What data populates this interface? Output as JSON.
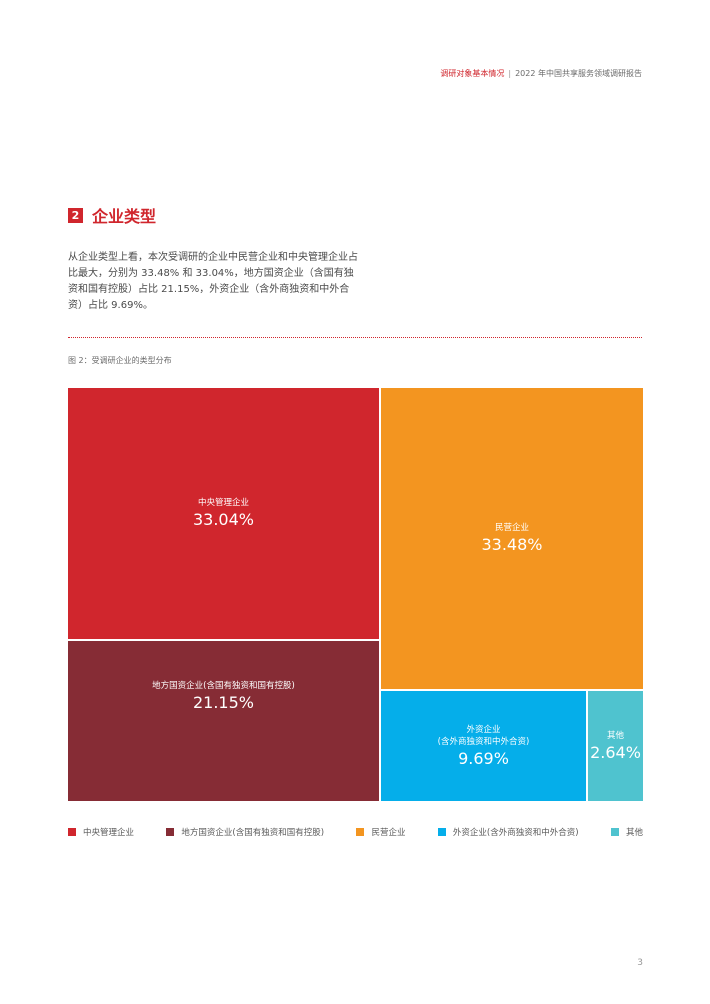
{
  "header": {
    "section": "调研对象基本情况",
    "report": "2022 年中国共享服务领域调研报告"
  },
  "section": {
    "number": "2",
    "title": "企业类型"
  },
  "intro": "从企业类型上看，本次受调研的企业中民营企业和中央管理企业占比最大，分别为 33.48% 和 33.04%，地方国资企业（含国有独资和国有控股）占比 21.15%，外资企业（含外商独资和中外合资）占比 9.69%。",
  "figure_caption": "图 2：受调研企业的类型分布",
  "page_number": "3",
  "chart_data": {
    "type": "treemap",
    "title": "",
    "items": [
      {
        "label": "中央管理企业",
        "sublabel": "",
        "value": 33.04,
        "display": "33.04%",
        "color": "#d0262d"
      },
      {
        "label": "地方国资企业(含国有独资和国有控股)",
        "sublabel": "",
        "value": 21.15,
        "display": "21.15%",
        "color": "#862c35"
      },
      {
        "label": "民营企业",
        "sublabel": "",
        "value": 33.48,
        "display": "33.48%",
        "color": "#f39520"
      },
      {
        "label": "外资企业",
        "sublabel": "(含外商独资和中外合资)",
        "value": 9.69,
        "display": "9.69%",
        "color": "#05aeea"
      },
      {
        "label": "其他",
        "sublabel": "",
        "value": 2.64,
        "display": "2.64%",
        "color": "#4fc3cf"
      }
    ],
    "legend": [
      {
        "label": "中央管理企业",
        "color": "#d0262d"
      },
      {
        "label": "地方国资企业(含国有独资和国有控股)",
        "color": "#862c35"
      },
      {
        "label": "民营企业",
        "color": "#f39520"
      },
      {
        "label": "外资企业(含外商独资和中外合资)",
        "color": "#05aeea"
      },
      {
        "label": "其他",
        "color": "#4fc3cf"
      }
    ],
    "legend_position": "bottom"
  }
}
